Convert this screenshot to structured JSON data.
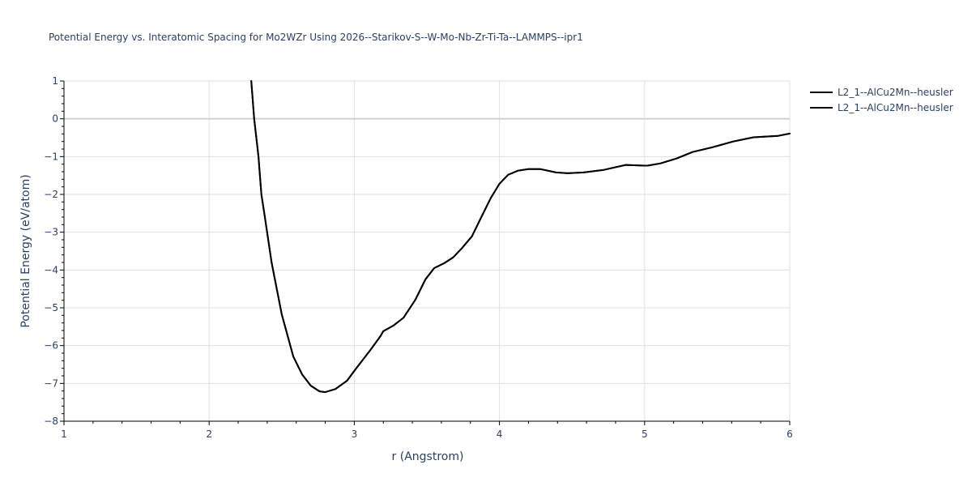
{
  "chart_data": {
    "type": "line",
    "title": "Potential Energy vs. Interatomic Spacing for Mo2WZr Using 2026--Starikov-S--W-Mo-Nb-Zr-Ti-Ta--LAMMPS--ipr1",
    "xlabel": "r (Angstrom)",
    "ylabel": "Potential Energy (eV/atom)",
    "xlim": [
      1,
      6
    ],
    "ylim": [
      -8,
      1
    ],
    "xticks": [
      1,
      2,
      3,
      4,
      5,
      6
    ],
    "yticks": [
      1,
      0,
      -1,
      -2,
      -3,
      -4,
      -5,
      -6,
      -7,
      -8
    ],
    "ytick_labels": [
      "1",
      "0",
      "−1",
      "−2",
      "−3",
      "−4",
      "−5",
      "−6",
      "−7",
      "−8"
    ],
    "grid": true,
    "legend_position": "top-right, outside plot",
    "series": [
      {
        "name": "L2_1--AlCu2Mn--heusler",
        "color": "#000000",
        "x": [
          2.29,
          2.31,
          2.34,
          2.36,
          2.38,
          2.43,
          2.5,
          2.58,
          2.64,
          2.7,
          2.76,
          2.8,
          2.87,
          2.95,
          3.0,
          3.11,
          3.18,
          3.2,
          3.27,
          3.34,
          3.42,
          3.49,
          3.55,
          3.62,
          3.68,
          3.74,
          3.81,
          3.87,
          3.94,
          4.0,
          4.06,
          4.13,
          4.2,
          4.28,
          4.39,
          4.47,
          4.58,
          4.72,
          4.87,
          5.0,
          5.02,
          5.11,
          5.22,
          5.33,
          5.47,
          5.61,
          5.75,
          5.92,
          6.0
        ],
        "y": [
          1.0,
          0.0,
          -1.0,
          -2.0,
          -2.5,
          -3.8,
          -5.17,
          -6.29,
          -6.76,
          -7.06,
          -7.21,
          -7.23,
          -7.15,
          -6.93,
          -6.67,
          -6.12,
          -5.75,
          -5.62,
          -5.47,
          -5.26,
          -4.79,
          -4.25,
          -3.95,
          -3.82,
          -3.67,
          -3.43,
          -3.11,
          -2.64,
          -2.1,
          -1.72,
          -1.48,
          -1.37,
          -1.33,
          -1.33,
          -1.42,
          -1.44,
          -1.42,
          -1.35,
          -1.22,
          -1.24,
          -1.24,
          -1.18,
          -1.05,
          -0.88,
          -0.75,
          -0.6,
          -0.49,
          -0.45,
          -0.39
        ]
      },
      {
        "name": "L2_1--AlCu2Mn--heusler",
        "color": "#000000",
        "x": [
          2.29,
          2.31,
          2.34,
          2.36,
          2.38,
          2.43,
          2.5,
          2.58,
          2.64,
          2.7,
          2.76,
          2.8,
          2.87,
          2.95,
          3.0,
          3.11,
          3.18,
          3.2,
          3.27,
          3.34,
          3.42,
          3.49,
          3.55,
          3.62,
          3.68,
          3.74,
          3.81,
          3.87,
          3.94,
          4.0,
          4.06,
          4.13,
          4.2,
          4.28,
          4.39,
          4.47,
          4.58,
          4.72,
          4.87,
          5.0,
          5.02,
          5.11,
          5.22,
          5.33,
          5.47,
          5.61,
          5.75,
          5.92,
          6.0
        ],
        "y": [
          1.0,
          0.0,
          -1.0,
          -2.0,
          -2.5,
          -3.8,
          -5.17,
          -6.29,
          -6.76,
          -7.06,
          -7.21,
          -7.23,
          -7.15,
          -6.93,
          -6.67,
          -6.12,
          -5.75,
          -5.62,
          -5.47,
          -5.26,
          -4.79,
          -4.25,
          -3.95,
          -3.82,
          -3.67,
          -3.43,
          -3.11,
          -2.64,
          -2.1,
          -1.72,
          -1.48,
          -1.37,
          -1.33,
          -1.33,
          -1.42,
          -1.44,
          -1.42,
          -1.35,
          -1.22,
          -1.24,
          -1.24,
          -1.18,
          -1.05,
          -0.88,
          -0.75,
          -0.6,
          -0.49,
          -0.45,
          -0.39
        ]
      }
    ]
  },
  "legend": {
    "items": [
      {
        "label": "L2_1--AlCu2Mn--heusler",
        "color": "#000000"
      },
      {
        "label": "L2_1--AlCu2Mn--heusler",
        "color": "#000000"
      }
    ]
  }
}
